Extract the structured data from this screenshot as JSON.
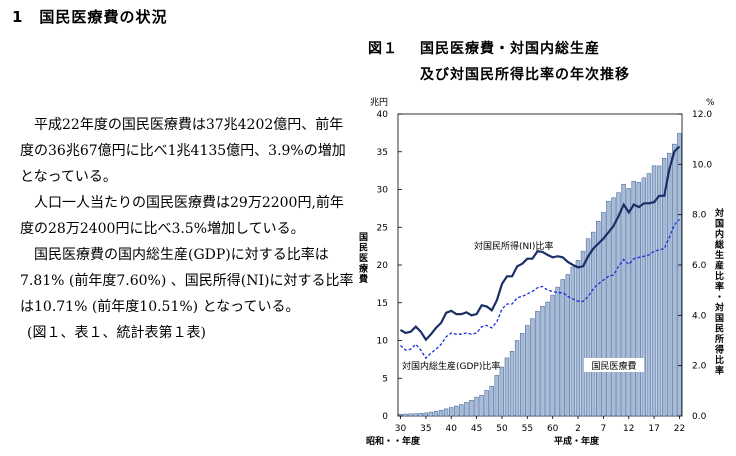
{
  "heading": "1　国民医療費の状況",
  "paragraphs": [
    "平成22年度の国民医療費は37兆4202億円、前年度の36兆67億円に比べ1兆4135億円、3.9%の増加となっている。",
    "人口一人当たりの国民医療費は29万2200円,前年度の28万2400円に比べ3.5%増加している。",
    "国民医療費の国内総生産(GDP)に対する比率は7.81% (前年度7.60%) 、国民所得(NI)に対する比率は10.71% (前年度10.51%) となっている。"
  ],
  "reference": "(図１、表１、統計表第１表)",
  "figure": {
    "number": "図１",
    "title_line1": "国民医療費・対国内総生産",
    "title_line2": "及び対国民所得比率の年次推移"
  },
  "chart_data": {
    "type": "bar",
    "left_unit": "兆円",
    "right_unit": "%",
    "left_axis_label": "国民医療費",
    "right_axis_label": "対国内総生産比率・対国民所得比率",
    "xlabel_left": "昭和・・年度",
    "xlabel_right": "平成・年度",
    "left_ticks": [
      "0",
      "5",
      "10",
      "15",
      "20",
      "25",
      "30",
      "35",
      "40"
    ],
    "right_ticks": [
      "0.0",
      "2.0",
      "4.0",
      "6.0",
      "8.0",
      "10.0",
      "12.0"
    ],
    "x_ticks": [
      "30",
      "35",
      "40",
      "45",
      "50",
      "55",
      "60",
      "2",
      "7",
      "12",
      "17",
      "22"
    ],
    "ylim_left": [
      0,
      40
    ],
    "ylim_right": [
      0,
      12
    ],
    "series_labels": {
      "ni": "対国民所得(NI)比率",
      "gdp": "対国内総生産(GDP)比率",
      "bars": "国民医療費"
    },
    "years": [
      "S30",
      "S31",
      "S32",
      "S33",
      "S34",
      "S35",
      "S36",
      "S37",
      "S38",
      "S39",
      "S40",
      "S41",
      "S42",
      "S43",
      "S44",
      "S45",
      "S46",
      "S47",
      "S48",
      "S49",
      "S50",
      "S51",
      "S52",
      "S53",
      "S54",
      "S55",
      "S56",
      "S57",
      "S58",
      "S59",
      "S60",
      "S61",
      "S62",
      "S63",
      "H1",
      "H2",
      "H3",
      "H4",
      "H5",
      "H6",
      "H7",
      "H8",
      "H9",
      "H10",
      "H11",
      "H12",
      "H13",
      "H14",
      "H15",
      "H16",
      "H17",
      "H18",
      "H19",
      "H20",
      "H21",
      "H22"
    ],
    "bar_values": [
      0.24,
      0.26,
      0.28,
      0.31,
      0.35,
      0.41,
      0.51,
      0.61,
      0.76,
      0.94,
      1.12,
      1.32,
      1.52,
      1.8,
      2.08,
      2.5,
      2.75,
      3.39,
      3.95,
      5.38,
      6.48,
      7.69,
      8.57,
      10.0,
      10.95,
      11.98,
      12.89,
      13.86,
      14.54,
      15.09,
      16.02,
      17.07,
      18.08,
      18.75,
      19.73,
      20.61,
      21.83,
      23.48,
      24.36,
      25.79,
      26.96,
      28.45,
      28.91,
      29.58,
      30.7,
      30.14,
      31.1,
      30.95,
      31.54,
      32.11,
      33.13,
      33.12,
      34.14,
      34.81,
      36.01,
      37.42
    ],
    "ni_values": [
      3.42,
      3.3,
      3.35,
      3.55,
      3.35,
      3.03,
      3.25,
      3.5,
      3.7,
      4.1,
      4.18,
      4.05,
      4.05,
      4.12,
      4.0,
      4.05,
      4.4,
      4.35,
      4.2,
      4.6,
      5.25,
      5.55,
      5.55,
      5.95,
      6.05,
      6.25,
      6.25,
      6.55,
      6.52,
      6.4,
      6.3,
      6.35,
      6.3,
      6.12,
      6.0,
      5.91,
      5.95,
      6.35,
      6.65,
      6.85,
      7.05,
      7.3,
      7.55,
      7.95,
      8.4,
      8.09,
      8.4,
      8.3,
      8.45,
      8.45,
      8.5,
      8.75,
      8.75,
      9.8,
      10.51,
      10.71
    ],
    "gdp_values": [
      2.8,
      2.62,
      2.65,
      2.85,
      2.62,
      2.3,
      2.5,
      2.65,
      2.85,
      3.15,
      3.3,
      3.25,
      3.25,
      3.3,
      3.25,
      3.3,
      3.55,
      3.6,
      3.5,
      3.75,
      4.25,
      4.45,
      4.45,
      4.7,
      4.75,
      4.85,
      4.95,
      5.1,
      5.15,
      5.0,
      4.95,
      4.9,
      4.9,
      4.75,
      4.65,
      4.56,
      4.55,
      4.75,
      5.05,
      5.25,
      5.4,
      5.55,
      5.6,
      5.95,
      6.22,
      6.02,
      6.25,
      6.3,
      6.35,
      6.4,
      6.55,
      6.6,
      6.65,
      7.1,
      7.6,
      7.81
    ]
  }
}
